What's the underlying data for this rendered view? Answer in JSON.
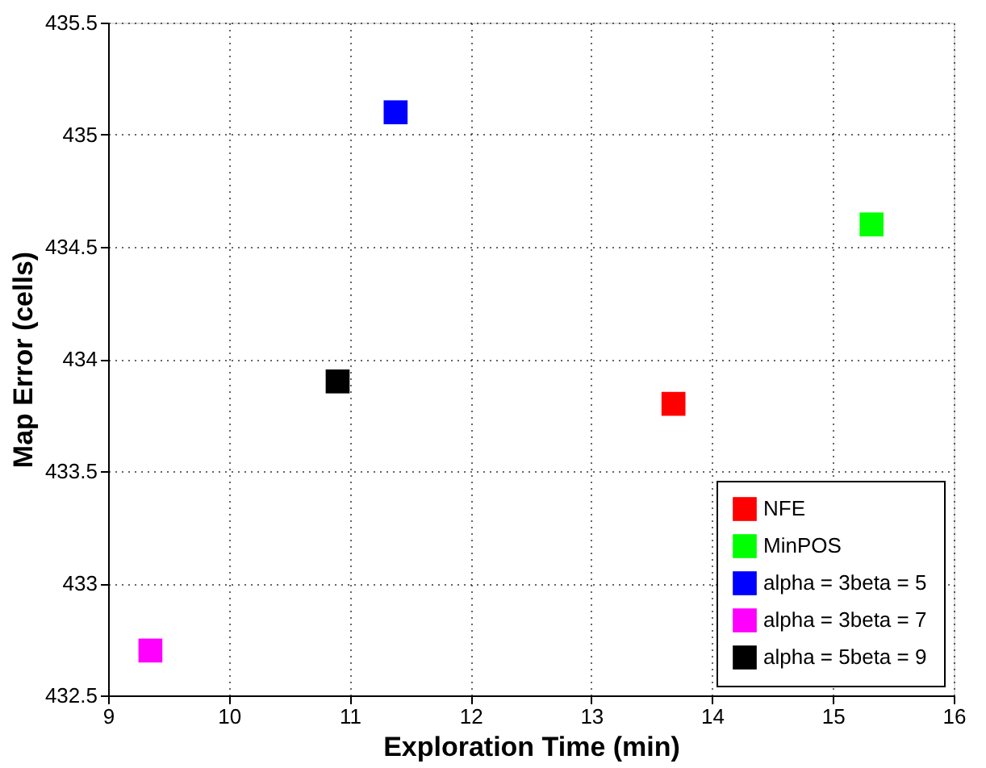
{
  "chart_data": {
    "type": "scatter",
    "xlabel": "Exploration Time (min)",
    "ylabel": "Map Error (cells)",
    "xlim": [
      9,
      16
    ],
    "xticks": [
      9,
      10,
      11,
      12,
      13,
      14,
      15,
      16
    ],
    "ylim": [
      432.5,
      435.5
    ],
    "yticks": [
      432.5,
      433,
      433.5,
      434,
      434.5,
      435,
      435.5
    ],
    "grid": true,
    "legend": "bottom right",
    "marker": "square",
    "series": [
      {
        "name": "NFE",
        "color": "#ff0000",
        "x": [
          13.68
        ],
        "values": [
          433.8
        ]
      },
      {
        "name": "MinPOS",
        "color": "#00ff00",
        "x": [
          15.32
        ],
        "values": [
          434.6
        ]
      },
      {
        "name": "alpha = 3beta = 5",
        "color": "#0000ff",
        "x": [
          11.38
        ],
        "values": [
          435.1
        ]
      },
      {
        "name": "alpha = 3beta = 7",
        "color": "#ff00ff",
        "x": [
          9.35
        ],
        "values": [
          432.7
        ]
      },
      {
        "name": "alpha = 5beta = 9",
        "color": "#000000",
        "x": [
          10.9
        ],
        "values": [
          433.9
        ]
      }
    ]
  }
}
